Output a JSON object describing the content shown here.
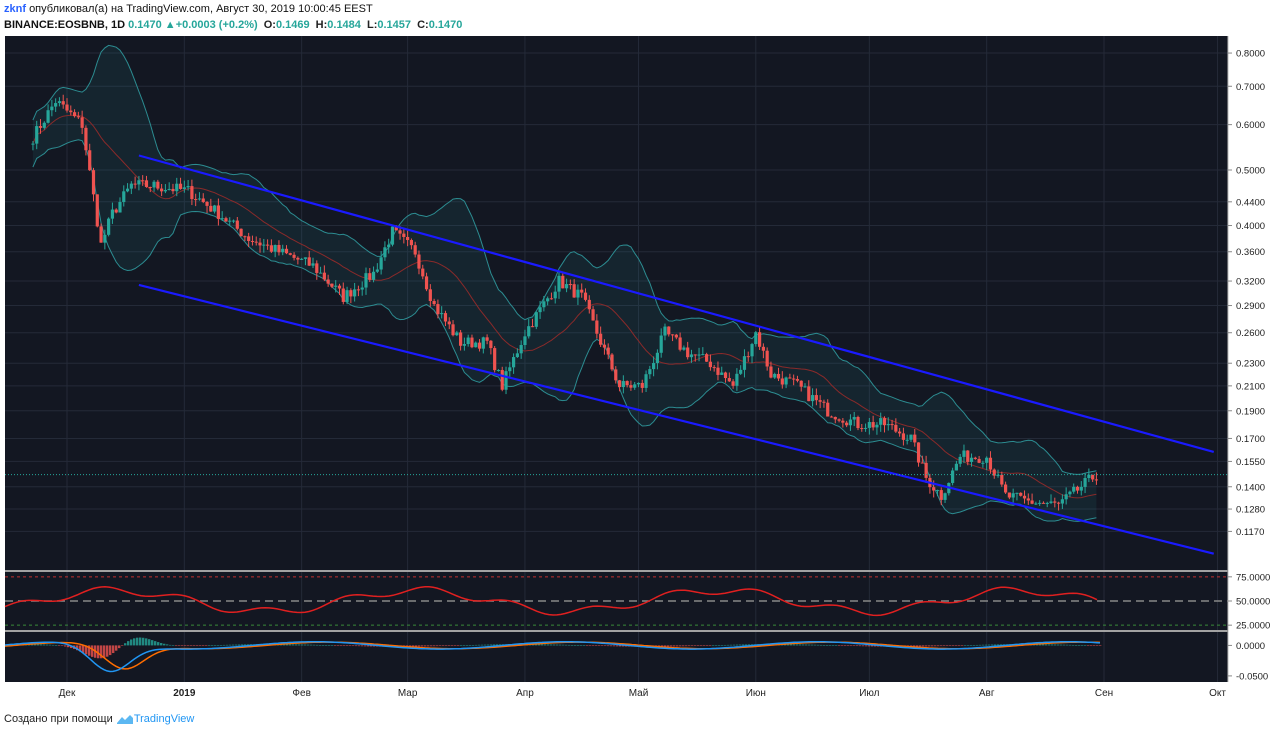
{
  "header": {
    "author": "zknf",
    "published_text": "опубликовал(а) на TradingView.com, Август 30, 2019 10:00:45 EEST",
    "symbol": "BINANCE:EOSBNB, 1D",
    "last": "0.1470",
    "change": "+0.0003 (+0.2%)",
    "open_label": "O:",
    "open": "0.1469",
    "high_label": "H:",
    "high": "0.1484",
    "low_label": "L:",
    "low": "0.1457",
    "close_label": "C:",
    "close": "0.1470"
  },
  "footer": {
    "made_with": "Создано при помощи",
    "brand": "TradingView"
  },
  "colors": {
    "background": "#131722",
    "up": "#26a69a",
    "down": "#ef5350",
    "channel": "#1a1aff",
    "bollinger": "#2c8c91",
    "rsi": "#e02020",
    "macd": "#2196f3",
    "signal": "#ff6d00"
  },
  "chart_data": [
    {
      "type": "candlestick",
      "name": "EOSBNB",
      "scale": "log",
      "y_ticks": [
        "0.8000",
        "0.7000",
        "0.6000",
        "0.5000",
        "0.4400",
        "0.4000",
        "0.3600",
        "0.3200",
        "0.2900",
        "0.2600",
        "0.2300",
        "0.2100",
        "0.1900",
        "0.1700",
        "0.1550",
        "0.1400",
        "0.1280",
        "0.1170"
      ],
      "x_ticks": [
        "Дек",
        "2019",
        "Фев",
        "Мар",
        "Апр",
        "Май",
        "Июн",
        "Июл",
        "Авг",
        "Сен",
        "Окт"
      ],
      "ylim": [
        0.107,
        0.84
      ],
      "close_series_x": [
        "2018-11-22",
        "2018-11-28",
        "2018-12-05",
        "2018-12-10",
        "2018-12-13",
        "2018-12-18",
        "2018-12-23",
        "2019-01-02",
        "2019-01-10",
        "2019-01-18",
        "2019-01-26",
        "2019-02-04",
        "2019-02-12",
        "2019-02-20",
        "2019-02-25",
        "2019-03-03",
        "2019-03-08",
        "2019-03-15",
        "2019-03-22",
        "2019-03-26",
        "2019-04-01",
        "2019-04-10",
        "2019-04-16",
        "2019-04-20",
        "2019-04-26",
        "2019-05-02",
        "2019-05-08",
        "2019-05-14",
        "2019-05-20",
        "2019-05-26",
        "2019-06-01",
        "2019-06-05",
        "2019-06-12",
        "2019-06-20",
        "2019-06-28",
        "2019-07-05",
        "2019-07-12",
        "2019-07-16",
        "2019-07-20",
        "2019-07-25",
        "2019-08-01",
        "2019-08-06",
        "2019-08-12",
        "2019-08-20",
        "2019-08-26",
        "2019-08-30"
      ],
      "close_series_y": [
        0.57,
        0.66,
        0.6,
        0.37,
        0.42,
        0.47,
        0.47,
        0.46,
        0.42,
        0.38,
        0.36,
        0.34,
        0.3,
        0.33,
        0.39,
        0.36,
        0.29,
        0.25,
        0.25,
        0.21,
        0.26,
        0.32,
        0.3,
        0.26,
        0.21,
        0.21,
        0.26,
        0.24,
        0.23,
        0.21,
        0.26,
        0.22,
        0.21,
        0.19,
        0.18,
        0.18,
        0.17,
        0.145,
        0.135,
        0.158,
        0.158,
        0.135,
        0.132,
        0.13,
        0.14,
        0.147
      ],
      "last_price_line": 0.147,
      "channel_upper": {
        "x": [
          "2018-12-20",
          "2019-09-30"
        ],
        "y": [
          0.53,
          0.161
        ]
      },
      "channel_lower": {
        "x": [
          "2018-12-20",
          "2019-09-30"
        ],
        "y": [
          0.315,
          0.107
        ]
      }
    },
    {
      "type": "line",
      "name": "RSI",
      "y_ticks": [
        "75.0000",
        "50.0000",
        "25.0000"
      ],
      "levels": [
        75,
        50,
        25
      ],
      "ylim": [
        20,
        80
      ]
    },
    {
      "type": "line",
      "name": "MACD",
      "y_ticks": [
        "0.0000",
        "-0.0500"
      ],
      "ylim": [
        -0.06,
        0.022
      ]
    }
  ]
}
